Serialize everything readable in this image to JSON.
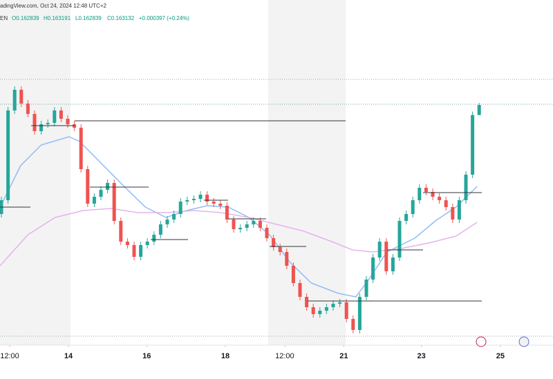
{
  "header": {
    "source": "adingView.com, Oct 24, 2024 12:48 UTC+2",
    "symbol": "EN",
    "open": "O0.162839",
    "high": "H0.163191",
    "low": "L0.162839",
    "close": "C0.163132",
    "change": "+0.000397 (+0.24%)"
  },
  "chart_data": {
    "type": "candlestick",
    "up_color": "#26a69a",
    "down_color": "#ef5350",
    "xlim": [
      -0.2083,
      83.125
    ],
    "ylim": [
      0.156172,
      0.166172
    ],
    "xticks": [
      {
        "value": 1.25,
        "label": "12:00"
      },
      {
        "value": 10.1,
        "label": "14"
      },
      {
        "value": 21.9,
        "label": "16"
      },
      {
        "value": 33.75,
        "label": "18"
      },
      {
        "value": 42.7,
        "label": "12:00"
      },
      {
        "value": 51.6,
        "label": "21"
      },
      {
        "value": 63.3,
        "label": "23"
      },
      {
        "value": 75.2,
        "label": "25"
      }
    ],
    "open": [
      0.159972,
      0.160372,
      0.162972,
      0.163572,
      0.163172,
      0.162872,
      0.162372,
      0.162572,
      0.162612,
      0.162972,
      0.162732,
      0.162572,
      0.162472,
      0.161272,
      0.160272,
      0.160472,
      0.160672,
      0.160872,
      0.159772,
      0.159172,
      0.159072,
      0.158732,
      0.159072,
      0.159172,
      0.159372,
      0.159672,
      0.159812,
      0.159972,
      0.160332,
      0.160372,
      0.160412,
      0.160532,
      0.160332,
      0.160272,
      0.160212,
      0.159812,
      0.159532,
      0.159572,
      0.159672,
      0.159772,
      0.159572,
      0.159272,
      0.159012,
      0.158872,
      0.158472,
      0.157972,
      0.157572,
      0.157272,
      0.157072,
      0.157172,
      0.157272,
      0.157372,
      0.157412,
      0.156932,
      0.156612,
      0.157572,
      0.158072,
      0.158712,
      0.159172,
      0.158312,
      0.158712,
      0.159772,
      0.159972,
      0.160372,
      0.160732,
      0.160612,
      0.160472,
      0.160372,
      0.160172,
      0.159812,
      0.160372,
      0.161112,
      0.162839
    ],
    "high": [
      0.160472,
      0.163072,
      0.163672,
      0.163672,
      0.163272,
      0.162972,
      0.162672,
      0.162712,
      0.163072,
      0.163072,
      0.162832,
      0.162672,
      0.162572,
      0.161372,
      0.160572,
      0.160772,
      0.160972,
      0.160972,
      0.159872,
      0.159272,
      0.159172,
      0.159172,
      0.159272,
      0.159472,
      0.159772,
      0.159912,
      0.160072,
      0.160432,
      0.160472,
      0.160512,
      0.160632,
      0.160632,
      0.160432,
      0.160372,
      0.160312,
      0.159912,
      0.159672,
      0.159772,
      0.159872,
      0.159872,
      0.159672,
      0.159372,
      0.159112,
      0.158972,
      0.158572,
      0.158072,
      0.157672,
      0.157372,
      0.157272,
      0.157372,
      0.157472,
      0.157512,
      0.157512,
      0.157032,
      0.157672,
      0.158172,
      0.158812,
      0.159272,
      0.159272,
      0.158812,
      0.159872,
      0.160072,
      0.160472,
      0.160832,
      0.160832,
      0.160712,
      0.160572,
      0.160472,
      0.160272,
      0.160472,
      0.161212,
      0.162939,
      0.163191
    ],
    "low": [
      0.159872,
      0.160272,
      0.162872,
      0.163072,
      0.162772,
      0.162272,
      0.162272,
      0.162472,
      0.162512,
      0.162632,
      0.162472,
      0.162372,
      0.161172,
      0.160172,
      0.160172,
      0.160372,
      0.160572,
      0.159672,
      0.159072,
      0.158972,
      0.158632,
      0.158632,
      0.158972,
      0.159072,
      0.159272,
      0.159572,
      0.159712,
      0.159872,
      0.160232,
      0.160272,
      0.160312,
      0.160232,
      0.160172,
      0.160112,
      0.159712,
      0.159432,
      0.159432,
      0.159472,
      0.159572,
      0.159472,
      0.159172,
      0.158912,
      0.158772,
      0.158372,
      0.157872,
      0.157472,
      0.157172,
      0.156972,
      0.156972,
      0.157072,
      0.157172,
      0.157272,
      0.156832,
      0.156512,
      0.156512,
      0.157472,
      0.157972,
      0.158612,
      0.158212,
      0.158212,
      0.158612,
      0.159672,
      0.159872,
      0.160272,
      0.160512,
      0.160372,
      0.160272,
      0.160072,
      0.159712,
      0.159712,
      0.160272,
      0.161012,
      0.162839
    ],
    "close": [
      0.160372,
      0.162972,
      0.163572,
      0.163172,
      0.162872,
      0.162372,
      0.162572,
      0.162612,
      0.162972,
      0.162732,
      0.162572,
      0.162472,
      0.161272,
      0.160272,
      0.160472,
      0.160672,
      0.160872,
      0.159772,
      0.159172,
      0.159072,
      0.158732,
      0.159072,
      0.159172,
      0.159372,
      0.159672,
      0.159812,
      0.159972,
      0.160332,
      0.160372,
      0.160412,
      0.160532,
      0.160332,
      0.160272,
      0.160212,
      0.159812,
      0.159532,
      0.159572,
      0.159672,
      0.159772,
      0.159572,
      0.159272,
      0.159012,
      0.158872,
      0.158472,
      0.157972,
      0.157572,
      0.157272,
      0.157072,
      0.157172,
      0.157272,
      0.157372,
      0.157412,
      0.156932,
      0.156612,
      0.157572,
      0.158072,
      0.158712,
      0.159172,
      0.158312,
      0.158712,
      0.159772,
      0.159972,
      0.160372,
      0.160732,
      0.160612,
      0.160472,
      0.160372,
      0.160172,
      0.159812,
      0.160372,
      0.161112,
      0.162839,
      0.163132
    ],
    "lines": [
      {
        "color": "#8fbcf5",
        "x": [
          -0.2,
          2.9,
          6.0,
          10.2,
          11.8,
          15.4,
          18.5,
          21.7,
          24.8,
          27.9,
          31.0,
          34.2,
          37.3,
          40.4,
          43.5,
          46.7,
          50.8,
          53.4,
          55.0,
          58.1,
          62.3,
          65.4,
          68.5,
          71.7
        ],
        "values": [
          0.160172,
          0.161372,
          0.161972,
          0.162212,
          0.162072,
          0.161372,
          0.160772,
          0.160172,
          0.159872,
          0.160072,
          0.160212,
          0.160172,
          0.159872,
          0.159372,
          0.158572,
          0.157972,
          0.157672,
          0.157572,
          0.157972,
          0.158872,
          0.159272,
          0.159772,
          0.160172,
          0.160772
        ]
      },
      {
        "color": "#e3b4ea",
        "x": [
          -0.2,
          4.0,
          8.1,
          12.3,
          16.5,
          20.6,
          24.8,
          29.0,
          33.1,
          37.3,
          41.5,
          45.6,
          49.8,
          52.9,
          56.0,
          60.2,
          64.4,
          68.5,
          71.7
        ],
        "values": [
          0.158472,
          0.159372,
          0.159872,
          0.160072,
          0.160132,
          0.160012,
          0.160012,
          0.160072,
          0.160012,
          0.159872,
          0.159672,
          0.159472,
          0.159172,
          0.158932,
          0.158872,
          0.158972,
          0.159132,
          0.159332,
          0.159732
        ]
      }
    ]
  }
}
